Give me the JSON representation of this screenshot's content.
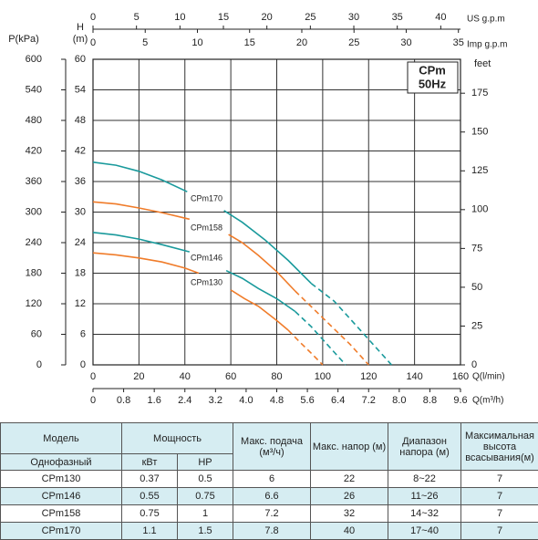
{
  "chart_data": {
    "type": "line",
    "badge": [
      "CPm",
      "50Hz"
    ],
    "xlabel": "Q(l/min)",
    "xlim": [
      0,
      160
    ],
    "xticks": [
      0,
      20,
      40,
      60,
      80,
      100,
      120,
      140,
      160
    ],
    "x2": {
      "label": "Q(m³/h)",
      "lim": [
        0,
        9.6
      ],
      "ticks": [
        0,
        0.8,
        1.6,
        2.4,
        3.2,
        {
          "value": 4,
          "label": "4.0"
        },
        4.8,
        5.6,
        6.4,
        7.2,
        {
          "value": 8,
          "label": "8.0"
        },
        8.8,
        9.6
      ]
    },
    "top_axes": [
      {
        "label": "US  g.p.m",
        "lim": [
          0,
          42.27
        ],
        "ticks": [
          0,
          5,
          10,
          15,
          20,
          25,
          30,
          35,
          40
        ]
      },
      {
        "label": "Imp  g.p.m",
        "lim": [
          0,
          35.2
        ],
        "ticks": [
          0,
          5,
          10,
          15,
          20,
          25,
          30,
          35
        ]
      }
    ],
    "ylabel": [
      "H",
      "(m)"
    ],
    "ylim": [
      0,
      60
    ],
    "yticks": [
      0,
      6,
      12,
      18,
      24,
      30,
      36,
      42,
      48,
      54,
      60
    ],
    "p_axis": {
      "label": "P(kPa)",
      "lim": [
        0,
        600
      ],
      "ticks": [
        0,
        60,
        120,
        180,
        240,
        300,
        360,
        420,
        480,
        540,
        600
      ]
    },
    "y2label": "feet",
    "y2lim": [
      0,
      196.85
    ],
    "y2ticks": [
      0,
      25,
      50,
      75,
      100,
      125,
      150,
      175
    ],
    "grid": true,
    "series": [
      {
        "name": "CPm170",
        "color": "#1a9a9c",
        "x": [
          0,
          10,
          20,
          30,
          41,
          null,
          57,
          65,
          75,
          85,
          95
        ],
        "values": [
          39.8,
          39.2,
          38,
          36.3,
          34,
          null,
          30.3,
          28,
          24.5,
          20.5,
          16
        ],
        "extension": {
          "x": [
            95,
            105,
            115,
            122,
            130
          ],
          "values": [
            16,
            12.5,
            7.5,
            4,
            0
          ]
        }
      },
      {
        "name": "CPm158",
        "color": "#f07c2a",
        "x": [
          0,
          10,
          20,
          30,
          42,
          null,
          59,
          65,
          72,
          80,
          88
        ],
        "values": [
          32,
          31.6,
          30.8,
          29.9,
          28.6,
          null,
          25.6,
          24,
          21.5,
          18.3,
          14.5
        ],
        "extension": {
          "x": [
            88,
            96,
            104,
            112,
            120
          ],
          "values": [
            14.5,
            11,
            7.5,
            4,
            0
          ]
        }
      },
      {
        "name": "CPm146",
        "color": "#1a9a9c",
        "x": [
          0,
          10,
          20,
          30,
          42,
          null,
          58,
          65,
          72,
          80,
          88
        ],
        "values": [
          26,
          25.5,
          24.7,
          23.6,
          22.2,
          null,
          18.5,
          17,
          15,
          13,
          10.5
        ],
        "extension": {
          "x": [
            88,
            95,
            102,
            110
          ],
          "values": [
            10.5,
            7.5,
            4,
            0
          ]
        }
      },
      {
        "name": "CPm130",
        "color": "#f07c2a",
        "x": [
          0,
          10,
          20,
          30,
          40,
          46,
          null,
          60,
          66,
          72,
          80,
          85
        ],
        "values": [
          22,
          21.6,
          21,
          20.2,
          19,
          18,
          null,
          14.7,
          13,
          11.5,
          8.7,
          6.8
        ],
        "extension": {
          "x": [
            85,
            90,
            95,
            100
          ],
          "values": [
            6.8,
            4.5,
            2.3,
            0
          ]
        }
      }
    ]
  },
  "table": {
    "header": [
      "Модель",
      "Мощность",
      "Макс. подача (м³/ч)",
      "Макс. напор (м)",
      "Диапазон напора (м)",
      "Максимальная высота всасывания(м)"
    ],
    "subheader": [
      "Однофазный",
      "кВт",
      "HP"
    ],
    "rows": [
      [
        "CPm130",
        "0.37",
        "0.5",
        "6",
        "22",
        "8~22",
        "7"
      ],
      [
        "CPm146",
        "0.55",
        "0.75",
        "6.6",
        "26",
        "11~26",
        "7"
      ],
      [
        "CPm158",
        "0.75",
        "1",
        "7.2",
        "32",
        "14~32",
        "7"
      ],
      [
        "CPm170",
        "1.1",
        "1.5",
        "7.8",
        "40",
        "17~40",
        "7"
      ]
    ]
  }
}
